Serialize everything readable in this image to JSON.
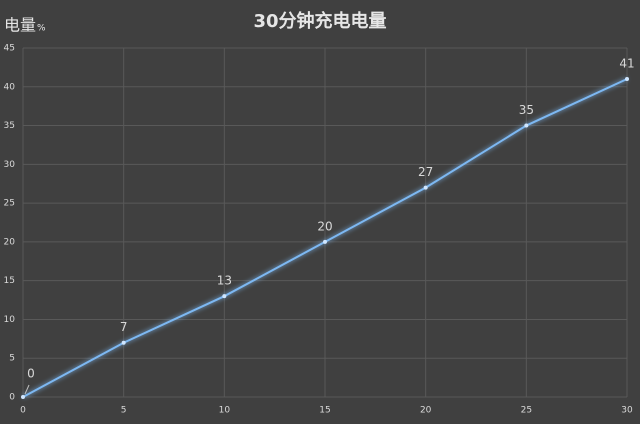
{
  "chart_data": {
    "type": "line",
    "title": "30分钟充电电量",
    "y_label": "电量",
    "y_unit": "%",
    "x": [
      0,
      5,
      10,
      15,
      20,
      25,
      30
    ],
    "series": [
      {
        "color": "#7db8f2",
        "values": [
          0,
          7,
          13,
          20,
          27,
          35,
          41
        ]
      }
    ],
    "xlim": [
      0,
      30
    ],
    "xticks": [
      0,
      5,
      10,
      15,
      20,
      25,
      30
    ],
    "ylim": [
      0,
      45
    ],
    "yticks": [
      0,
      5,
      10,
      15,
      20,
      25,
      30,
      35,
      40,
      45
    ],
    "grid": true,
    "data_labels": true
  }
}
